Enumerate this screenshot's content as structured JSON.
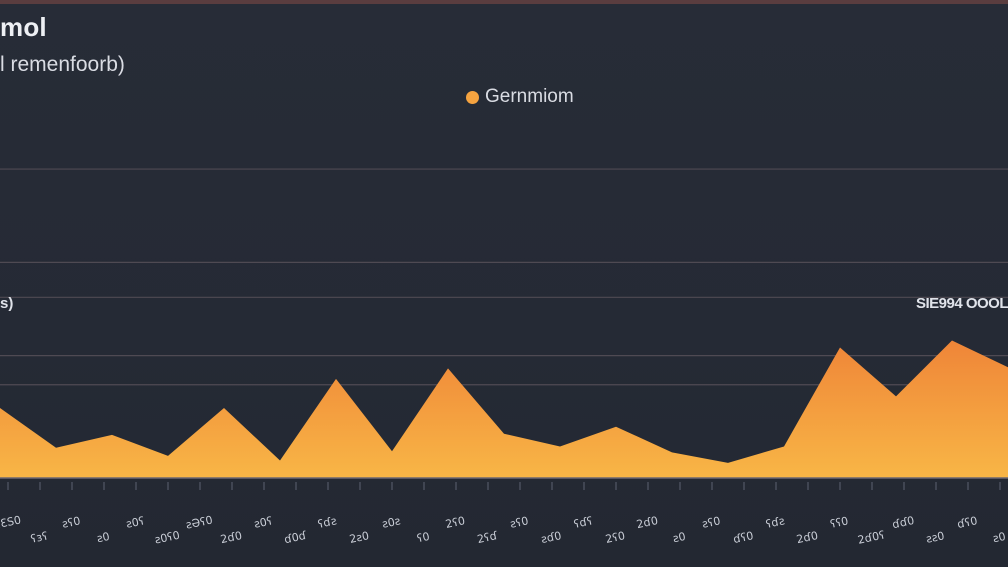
{
  "title": "mol",
  "subtitle": "l remenfoorb)",
  "legend": {
    "label": "Gernmiom",
    "color": "#f5a340"
  },
  "y_label_left": "s)",
  "y_label_right": "SIE994 OOOL",
  "colors": {
    "background": "#272b36",
    "fill_top": "#f0873a",
    "fill_bottom": "#f7b345",
    "grid": "#4f4a53",
    "baseline": "#6c6872"
  },
  "chart_data": {
    "type": "area",
    "title": "mol",
    "subtitle": "l remenfoorb)",
    "series": [
      {
        "name": "Gernmiom",
        "values": [
          60,
          26,
          37,
          19,
          60,
          15,
          85,
          23,
          94,
          38,
          27,
          44,
          22,
          13,
          27,
          112,
          70,
          118,
          95
        ]
      }
    ],
    "x": [
      0,
      1,
      2,
      3,
      4,
      5,
      6,
      7,
      8,
      9,
      10,
      11,
      12,
      13,
      14,
      15,
      16,
      17,
      18
    ],
    "ylim": [
      0,
      350
    ],
    "y_gridlines": [
      80,
      105,
      155,
      185,
      265
    ],
    "grid": true,
    "legend_position": "top-center",
    "tick_labels": [
      "2ƐS0",
      "ʕɜʕ",
      "ƨʕ0",
      "ƨ0",
      "ƨ0ʕ",
      "ƨ0ʕ0",
      "ƨƏʕ0",
      "2ɗ0",
      "ƨ0ʕ",
      "ɗ0ɗ",
      "ʕɗƨ",
      "2ƨ0",
      "ƨ0ƨ",
      "ʕ0",
      "2ʕ0",
      "2ʕɗ",
      "ƨʕ0",
      "ƨɗ0",
      "ʕɗʕ",
      "2ʕ0",
      "2ɗ0",
      "ƨ0",
      "ƨʕ0",
      "ɗʕ0",
      "ʕɗƨ",
      "2ɗ0",
      "ʕʕ0",
      "2ɗ0ʕ",
      "ɗɗ0",
      "ƨƨ0",
      "ɗʕ0",
      "ƨ0"
    ]
  }
}
